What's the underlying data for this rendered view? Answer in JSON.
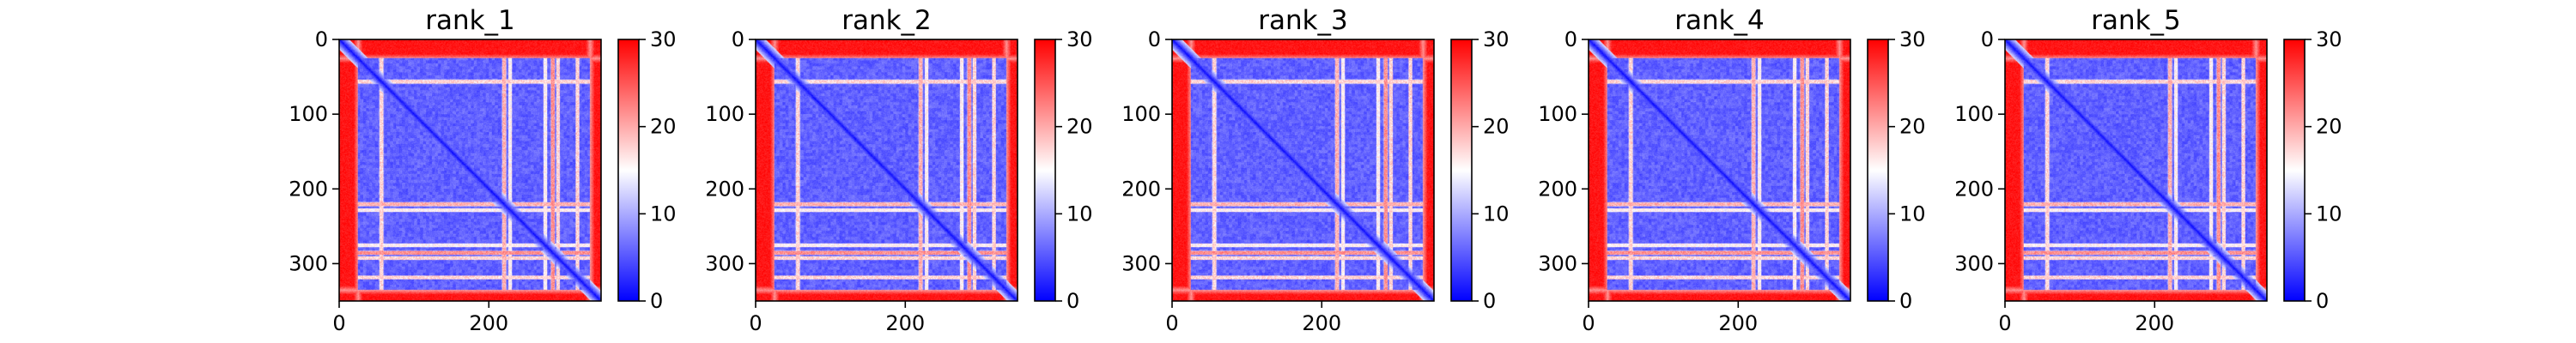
{
  "chart_data": [
    {
      "type": "heatmap",
      "title": "rank_1",
      "xlabel": "",
      "ylabel": "",
      "xlim": [
        0,
        350
      ],
      "ylim": [
        350,
        0
      ],
      "x_ticks": [
        0,
        200
      ],
      "y_ticks": [
        0,
        100,
        200,
        300
      ],
      "colorbar": {
        "range": [
          0,
          30
        ],
        "ticks": [
          0,
          10,
          20,
          30
        ],
        "colormap": "bwr"
      },
      "structure": {
        "size": 350,
        "background": 30,
        "inner_block": [
          25,
          335
        ],
        "lines": [
          {
            "index": 56,
            "value": 18
          },
          {
            "index": 220,
            "value": 20
          },
          {
            "index": 228,
            "value": 16
          },
          {
            "index": 275,
            "value": 16
          },
          {
            "index": 285,
            "value": 22
          },
          {
            "index": 292,
            "value": 18
          },
          {
            "index": 318,
            "value": 18
          }
        ],
        "block_boundaries": [
          56,
          220,
          285
        ],
        "diagonal_value": 0
      }
    },
    {
      "type": "heatmap",
      "title": "rank_2",
      "xlabel": "",
      "ylabel": "",
      "xlim": [
        0,
        350
      ],
      "ylim": [
        350,
        0
      ],
      "x_ticks": [
        0,
        200
      ],
      "y_ticks": [
        0,
        100,
        200,
        300
      ],
      "colorbar": {
        "range": [
          0,
          30
        ],
        "ticks": [
          0,
          10,
          20,
          30
        ],
        "colormap": "bwr"
      },
      "structure": {
        "size": 350,
        "background": 30,
        "inner_block": [
          25,
          335
        ],
        "lines": [
          {
            "index": 56,
            "value": 18
          },
          {
            "index": 220,
            "value": 20
          },
          {
            "index": 228,
            "value": 16
          },
          {
            "index": 275,
            "value": 16
          },
          {
            "index": 285,
            "value": 22
          },
          {
            "index": 292,
            "value": 18
          },
          {
            "index": 318,
            "value": 18
          }
        ],
        "block_boundaries": [
          56,
          220,
          285
        ],
        "diagonal_value": 0
      }
    },
    {
      "type": "heatmap",
      "title": "rank_3",
      "xlabel": "",
      "ylabel": "",
      "xlim": [
        0,
        350
      ],
      "ylim": [
        350,
        0
      ],
      "x_ticks": [
        0,
        200
      ],
      "y_ticks": [
        0,
        100,
        200,
        300
      ],
      "colorbar": {
        "range": [
          0,
          30
        ],
        "ticks": [
          0,
          10,
          20,
          30
        ],
        "colormap": "bwr"
      },
      "structure": {
        "size": 350,
        "background": 30,
        "inner_block": [
          25,
          335
        ],
        "lines": [
          {
            "index": 56,
            "value": 18
          },
          {
            "index": 220,
            "value": 20
          },
          {
            "index": 228,
            "value": 16
          },
          {
            "index": 275,
            "value": 16
          },
          {
            "index": 285,
            "value": 22
          },
          {
            "index": 292,
            "value": 18
          },
          {
            "index": 318,
            "value": 18
          }
        ],
        "block_boundaries": [
          56,
          220,
          285
        ],
        "diagonal_value": 0
      }
    },
    {
      "type": "heatmap",
      "title": "rank_4",
      "xlabel": "",
      "ylabel": "",
      "xlim": [
        0,
        350
      ],
      "ylim": [
        350,
        0
      ],
      "x_ticks": [
        0,
        200
      ],
      "y_ticks": [
        0,
        100,
        200,
        300
      ],
      "colorbar": {
        "range": [
          0,
          30
        ],
        "ticks": [
          0,
          10,
          20,
          30
        ],
        "colormap": "bwr"
      },
      "structure": {
        "size": 350,
        "background": 30,
        "inner_block": [
          25,
          335
        ],
        "lines": [
          {
            "index": 56,
            "value": 18
          },
          {
            "index": 220,
            "value": 20
          },
          {
            "index": 228,
            "value": 16
          },
          {
            "index": 275,
            "value": 16
          },
          {
            "index": 285,
            "value": 22
          },
          {
            "index": 292,
            "value": 18
          },
          {
            "index": 318,
            "value": 18
          }
        ],
        "block_boundaries": [
          56,
          220,
          285
        ],
        "diagonal_value": 0
      }
    },
    {
      "type": "heatmap",
      "title": "rank_5",
      "xlabel": "",
      "ylabel": "",
      "xlim": [
        0,
        350
      ],
      "ylim": [
        350,
        0
      ],
      "x_ticks": [
        0,
        200
      ],
      "y_ticks": [
        0,
        100,
        200,
        300
      ],
      "colorbar": {
        "range": [
          0,
          30
        ],
        "ticks": [
          0,
          10,
          20,
          30
        ],
        "colormap": "bwr"
      },
      "structure": {
        "size": 350,
        "background": 30,
        "inner_block": [
          25,
          335
        ],
        "lines": [
          {
            "index": 56,
            "value": 18
          },
          {
            "index": 220,
            "value": 20
          },
          {
            "index": 228,
            "value": 16
          },
          {
            "index": 275,
            "value": 16
          },
          {
            "index": 285,
            "value": 22
          },
          {
            "index": 292,
            "value": 18
          },
          {
            "index": 318,
            "value": 18
          }
        ],
        "block_boundaries": [
          56,
          220,
          285
        ],
        "diagonal_value": 0
      }
    }
  ]
}
